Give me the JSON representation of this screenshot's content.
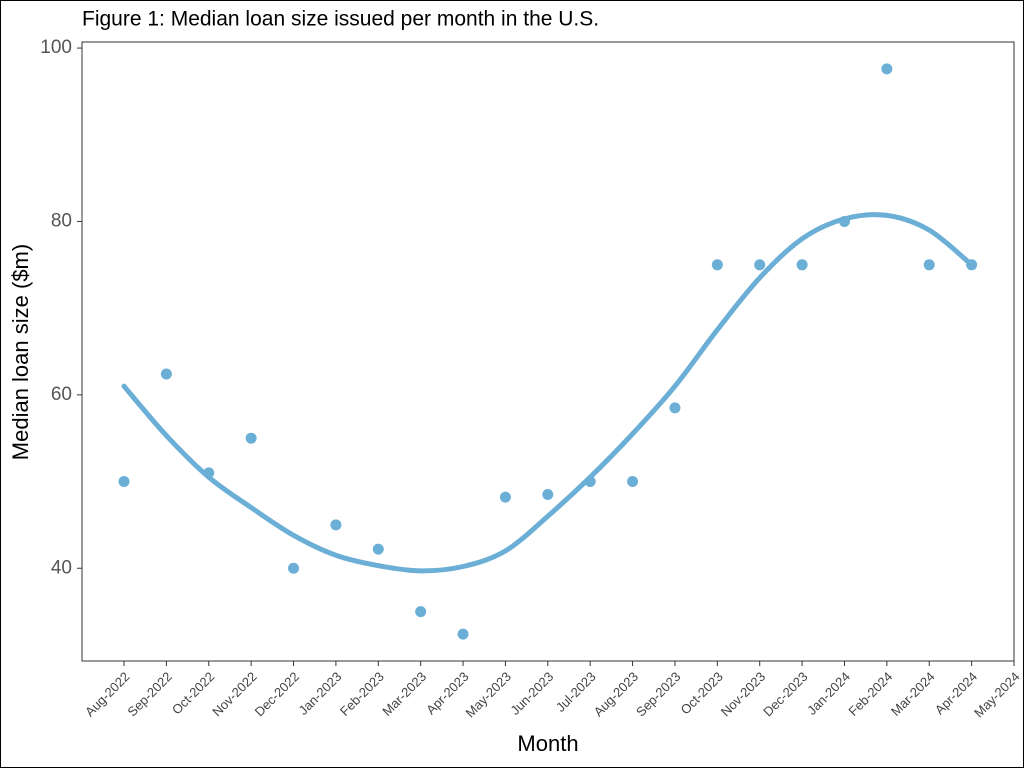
{
  "chart_data": {
    "type": "scatter",
    "title": "Figure 1: Median loan size issued per month in the U.S.",
    "x_label": "Month",
    "y_label": "Median loan size ($m)",
    "categories": [
      "Aug-2022",
      "Sep-2022",
      "Oct-2022",
      "Nov-2022",
      "Dec-2022",
      "Jan-2023",
      "Feb-2023",
      "Mar-2023",
      "Apr-2023",
      "May-2023",
      "Jun-2023",
      "Jul-2023",
      "Aug-2023",
      "Sep-2023",
      "Oct-2023",
      "Nov-2023",
      "Dec-2023",
      "Jan-2024",
      "Feb-2024",
      "Mar-2024",
      "Apr-2024",
      "May-2024"
    ],
    "values": [
      50,
      62.4,
      51,
      55,
      40,
      45,
      42.2,
      35,
      32.4,
      48.2,
      48.5,
      50,
      50,
      58.5,
      75,
      75,
      75,
      80,
      97.6,
      75,
      75,
      null
    ],
    "trend": [
      61,
      55.3,
      50.5,
      47,
      43.8,
      41.5,
      40.3,
      39.7,
      40.2,
      42,
      46,
      50.5,
      55.5,
      61,
      67.5,
      73.5,
      78,
      80.3,
      80.7,
      79,
      75,
      null
    ],
    "color": "#6baed6",
    "ylim": [
      29.3,
      100.7
    ],
    "yticks": [
      40,
      60,
      80,
      100
    ]
  }
}
